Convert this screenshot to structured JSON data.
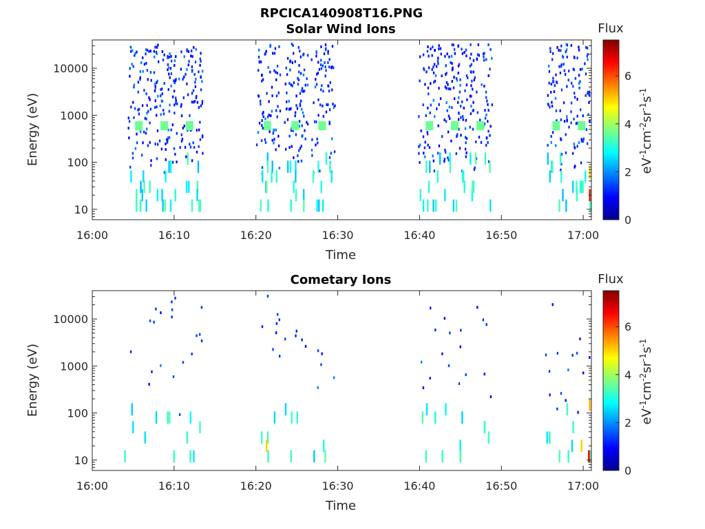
{
  "figure": {
    "title": "RPCICA140908T16.PNG",
    "colorbar_title": "Flux",
    "colorbar_unit": "eV",
    "colorbar_unit_parts": [
      "-1",
      "cm",
      "-2",
      "sr",
      "-1",
      "s",
      "-1"
    ],
    "colormap": [
      "#00008f",
      "#0000ff",
      "#0080ff",
      "#00ffff",
      "#80ff80",
      "#ffff00",
      "#ff8000",
      "#ff0000",
      "#800000"
    ]
  },
  "chart_data": [
    {
      "type": "heatmap",
      "title": "Solar Wind Ions",
      "xlabel": "Time",
      "ylabel": "Energy (eV)",
      "x_ticks": [
        "16:00",
        "16:10",
        "16:20",
        "16:30",
        "16:40",
        "16:50",
        "17:00"
      ],
      "x_tick_minutes": [
        0,
        10,
        20,
        30,
        40,
        50,
        60
      ],
      "xlim_minutes": [
        0,
        61
      ],
      "y_scale": "log",
      "y_ticks": [
        "10",
        "100",
        "1000",
        "10000"
      ],
      "y_tick_values": [
        10,
        100,
        1000,
        10000
      ],
      "ylim": [
        6,
        40000
      ],
      "clim": [
        0,
        7.5
      ],
      "colorbar_ticks": [
        "0",
        "2",
        "4",
        "6"
      ],
      "colorbar_tick_values": [
        0,
        2,
        4,
        6
      ],
      "background": "white",
      "bursts_minutes": [
        5.7,
        8.8,
        11.9,
        21.4,
        24.8,
        28.1,
        41.2,
        44.3,
        47.4,
        56.7,
        59.8
      ],
      "cells": [
        {
          "t": 5.7,
          "e": 600,
          "v": 3.6
        },
        {
          "t": 8.8,
          "e": 600,
          "v": 3.6
        },
        {
          "t": 11.9,
          "e": 600,
          "v": 3.6
        },
        {
          "t": 21.4,
          "e": 600,
          "v": 3.6
        },
        {
          "t": 24.8,
          "e": 600,
          "v": 3.6
        },
        {
          "t": 28.1,
          "e": 600,
          "v": 3.6
        },
        {
          "t": 41.2,
          "e": 600,
          "v": 3.6
        },
        {
          "t": 44.3,
          "e": 600,
          "v": 3.6
        },
        {
          "t": 47.4,
          "e": 600,
          "v": 3.6
        },
        {
          "t": 56.7,
          "e": 600,
          "v": 3.6
        },
        {
          "t": 59.8,
          "e": 600,
          "v": 3.6
        },
        {
          "t": 5.4,
          "e": 12,
          "v": 3.3
        },
        {
          "t": 5.9,
          "e": 12,
          "v": 3.2
        },
        {
          "t": 8.9,
          "e": 12,
          "v": 3.5
        },
        {
          "t": 12.2,
          "e": 12,
          "v": 3.3
        },
        {
          "t": 21.5,
          "e": 12,
          "v": 3.2
        },
        {
          "t": 24.3,
          "e": 12,
          "v": 3.1
        },
        {
          "t": 41.0,
          "e": 12,
          "v": 3.3
        },
        {
          "t": 42.0,
          "e": 12,
          "v": 3.2
        },
        {
          "t": 57.1,
          "e": 12,
          "v": 3.4
        },
        {
          "t": 21.3,
          "e": 30,
          "v": 3.5
        },
        {
          "t": 28.0,
          "e": 30,
          "v": 3.1
        },
        {
          "t": 59.8,
          "e": 30,
          "v": 3.2
        },
        {
          "t": 60.8,
          "e": 20,
          "v": 6.4
        },
        {
          "t": 60.8,
          "e": 60,
          "v": 5.0
        }
      ]
    },
    {
      "type": "heatmap",
      "title": "Cometary Ions",
      "xlabel": "Time",
      "ylabel": "Energy (eV)",
      "x_ticks": [
        "16:00",
        "16:10",
        "16:20",
        "16:30",
        "16:40",
        "16:50",
        "17:00"
      ],
      "x_tick_minutes": [
        0,
        10,
        20,
        30,
        40,
        50,
        60
      ],
      "xlim_minutes": [
        0,
        61
      ],
      "y_scale": "log",
      "y_ticks": [
        "10",
        "100",
        "1000",
        "10000"
      ],
      "y_tick_values": [
        10,
        100,
        1000,
        10000
      ],
      "ylim": [
        6,
        40000
      ],
      "clim": [
        0,
        7.5
      ],
      "colorbar_ticks": [
        "0",
        "2",
        "4",
        "6"
      ],
      "colorbar_tick_values": [
        0,
        2,
        4,
        6
      ],
      "background": "white",
      "bursts_minutes": [
        5.7,
        8.8,
        11.9,
        21.4,
        24.8,
        28.1,
        41.2,
        44.3,
        47.4,
        56.7,
        59.8
      ],
      "cells": [
        {
          "t": 21.3,
          "e": 20,
          "v": 5.0
        },
        {
          "t": 59.8,
          "e": 20,
          "v": 5.0
        },
        {
          "t": 60.7,
          "e": 12,
          "v": 6.6
        },
        {
          "t": 60.8,
          "e": 150,
          "v": 5.2
        },
        {
          "t": 4.0,
          "e": 12,
          "v": 3.3
        },
        {
          "t": 10.0,
          "e": 12,
          "v": 3.3
        },
        {
          "t": 12.0,
          "e": 12,
          "v": 3.3
        },
        {
          "t": 21.5,
          "e": 12,
          "v": 3.3
        },
        {
          "t": 24.3,
          "e": 12,
          "v": 3.3
        },
        {
          "t": 40.8,
          "e": 12,
          "v": 3.3
        },
        {
          "t": 42.8,
          "e": 12,
          "v": 3.3
        },
        {
          "t": 45.0,
          "e": 12,
          "v": 3.3
        },
        {
          "t": 58.2,
          "e": 12,
          "v": 3.3
        },
        {
          "t": 11.6,
          "e": 30,
          "v": 3.2
        },
        {
          "t": 55.9,
          "e": 30,
          "v": 3.2
        }
      ]
    }
  ]
}
